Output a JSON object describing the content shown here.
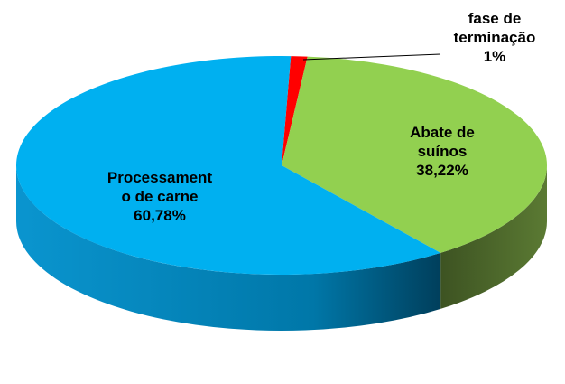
{
  "chart_data": {
    "type": "pie",
    "categories": [
      "fase de terminação",
      "Abate de suínos",
      "Processamento de carne"
    ],
    "values": [
      1,
      38.22,
      60.78
    ],
    "value_labels": [
      "1%",
      "38,22%",
      "60,78%"
    ],
    "colors": [
      "#ff0000",
      "#92d050",
      "#00b0f0"
    ]
  }
}
